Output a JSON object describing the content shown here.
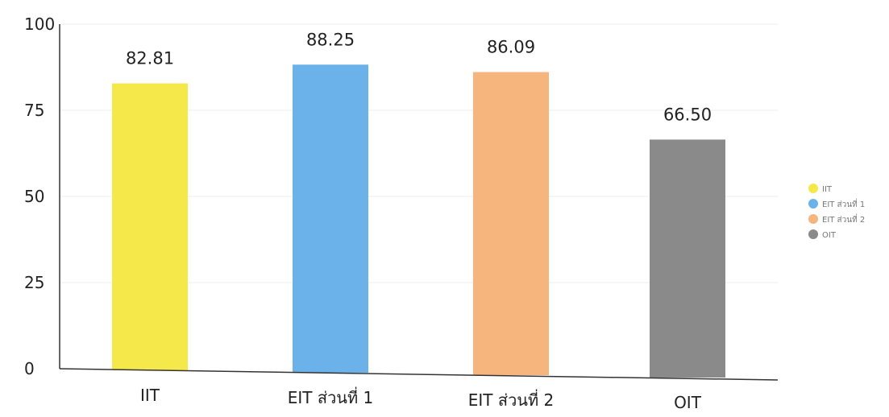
{
  "chart_data": {
    "type": "bar",
    "categories": [
      "IIT",
      "EIT ส่วนที่ 1",
      "EIT ส่วนที่ 2",
      "OIT"
    ],
    "values": [
      82.81,
      88.25,
      86.09,
      66.5
    ],
    "value_labels": [
      "82.81",
      "88.25",
      "86.09",
      "66.50"
    ],
    "colors": [
      "#f5e84a",
      "#6cb2ea",
      "#f7b57e",
      "#8a8a8a"
    ],
    "ylim": [
      0,
      100
    ],
    "yticks": [
      0,
      25,
      50,
      75,
      100
    ],
    "grid": true,
    "legend": {
      "placement": "right",
      "entries": [
        "IIT",
        "EIT ส่วนที่ 1",
        "EIT ส่วนที่ 2",
        "OIT"
      ]
    },
    "title": "",
    "xlabel": "",
    "ylabel": ""
  }
}
